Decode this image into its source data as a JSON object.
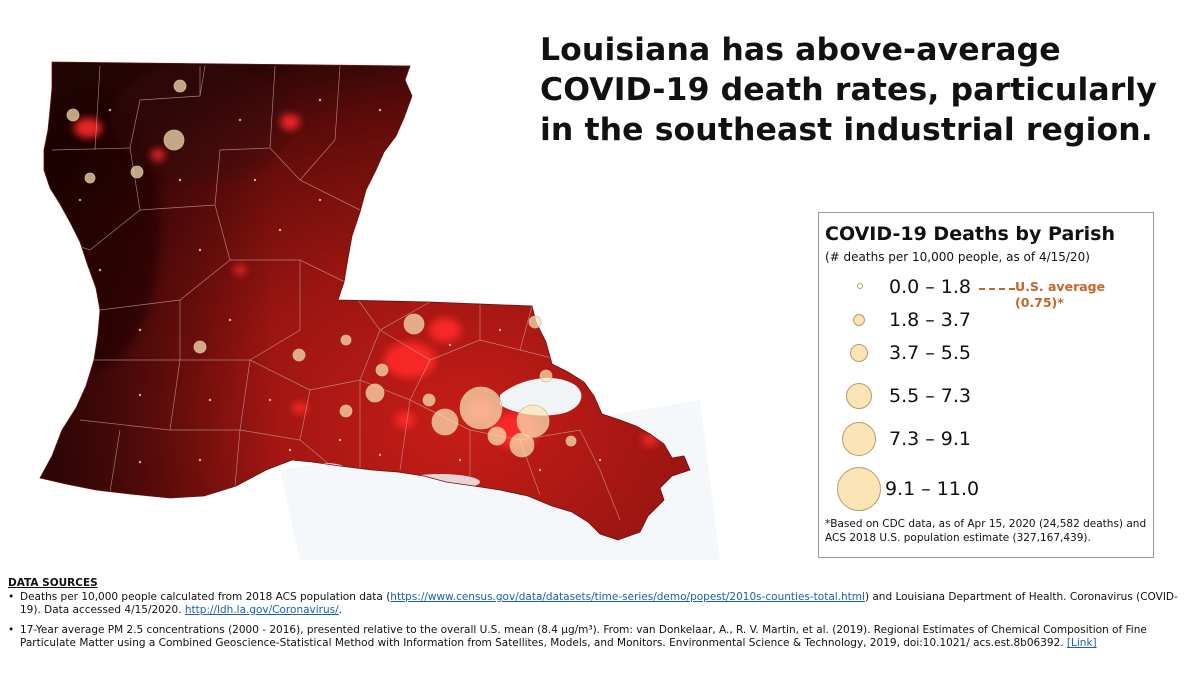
{
  "headline": "Louisiana has above-average COVID-19 death rates, particularly in the southeast industrial region.",
  "colors": {
    "map_dark": "#2a0606",
    "map_mid": "#8e1410",
    "map_bright": "#d8231c",
    "hotspot": "#ff2a2a",
    "bubble_fill": "#fbe4b6",
    "us_average": "#c8642a",
    "link": "#1a5fb4"
  },
  "legend": {
    "title": "COVID-19 Deaths by Parish",
    "subtitle": "(# deaths per 10,000 people, as of 4/15/20)",
    "bins": [
      {
        "range": "0.0 – 1.8",
        "min": 0.0,
        "max": 1.8
      },
      {
        "range": "1.8 – 3.7",
        "min": 1.8,
        "max": 3.7
      },
      {
        "range": "3.7 – 5.5",
        "min": 3.7,
        "max": 5.5
      },
      {
        "range": "5.5 – 7.3",
        "min": 5.5,
        "max": 7.3
      },
      {
        "range": "7.3 – 9.1",
        "min": 7.3,
        "max": 9.1
      },
      {
        "range": "9.1 – 11.0",
        "min": 9.1,
        "max": 11.0
      }
    ],
    "us_average_label": "U.S. average (0.75)*",
    "us_average_value": 0.75,
    "footnote": "*Based on CDC data, as of Apr 15, 2020 (24,582 deaths) and ACS 2018 U.S. population estimate (327,167,439)."
  },
  "sources": {
    "heading": "DATA SOURCES",
    "item1": {
      "text_a": "Deaths per 10,000 people calculated from 2018 ACS population data (",
      "link_a": "https://www.census.gov/data/datasets/time-series/demo/popest/2010s-counties-total.html",
      "text_b": ") and Louisiana Department of Health. Coronavirus (COVID-19). Data accessed 4/15/2020. ",
      "link_b": "http://ldh.la.gov/Coronavirus/",
      "text_c": "."
    },
    "item2": {
      "text_a": "17-Year average PM 2.5 concentrations (2000 - 2016), presented relative to the overall U.S. mean (8.4 µg/m³). From: van Donkelaar, A., R. V. Martin, et al. (2019). Regional Estimates of Chemical Composition of Fine Particulate Matter using a Combined Geoscience-Statistical Method with Information from Satellites, Models, and Monitors. Environmental Science & Technology, 2019, doi:10.1021/ acs.est.8b06392. ",
      "link": "[Link]"
    }
  }
}
